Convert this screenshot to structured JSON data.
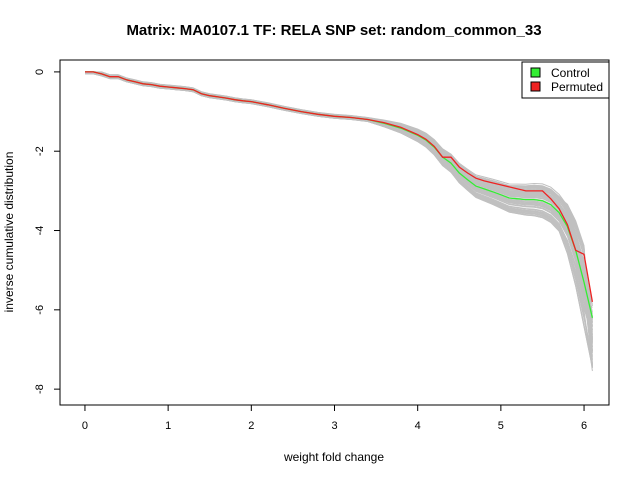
{
  "chart_data": {
    "type": "line",
    "title": "Matrix: MA0107.1 TF: RELA SNP set: random_common_33",
    "xlabel": "weight fold change",
    "ylabel": "inverse cumulative distribution",
    "xlim": [
      -0.3,
      6.3
    ],
    "ylim": [
      -8.4,
      0.3
    ],
    "xticks": [
      0,
      1,
      2,
      3,
      4,
      5,
      6
    ],
    "yticks": [
      0,
      -2,
      -4,
      -6,
      -8
    ],
    "grid": false,
    "legend_position": "top-right",
    "colors": {
      "control": "#33ee33",
      "permuted": "#ee2222",
      "background": "#c0c0c0"
    },
    "series": [
      {
        "name": "Control",
        "color": "#33ee33",
        "x": [
          0,
          0.1,
          0.2,
          0.3,
          0.4,
          0.5,
          0.6,
          0.7,
          0.8,
          0.9,
          1.0,
          1.1,
          1.2,
          1.3,
          1.4,
          1.5,
          1.6,
          1.7,
          1.8,
          1.9,
          2.0,
          2.2,
          2.4,
          2.6,
          2.8,
          3.0,
          3.2,
          3.4,
          3.6,
          3.8,
          4.0,
          4.1,
          4.2,
          4.3,
          4.4,
          4.5,
          4.6,
          4.7,
          4.8,
          4.9,
          5.0,
          5.1,
          5.2,
          5.3,
          5.4,
          5.5,
          5.6,
          5.7,
          5.8,
          5.9,
          6.0,
          6.1
        ],
        "values": [
          0,
          0,
          -0.05,
          -0.12,
          -0.12,
          -0.2,
          -0.25,
          -0.3,
          -0.32,
          -0.36,
          -0.38,
          -0.4,
          -0.42,
          -0.45,
          -0.55,
          -0.6,
          -0.63,
          -0.66,
          -0.7,
          -0.73,
          -0.75,
          -0.83,
          -0.92,
          -1.0,
          -1.07,
          -1.12,
          -1.15,
          -1.2,
          -1.3,
          -1.42,
          -1.6,
          -1.72,
          -1.9,
          -2.15,
          -2.3,
          -2.55,
          -2.72,
          -2.88,
          -2.95,
          -3.02,
          -3.1,
          -3.18,
          -3.2,
          -3.22,
          -3.22,
          -3.25,
          -3.35,
          -3.55,
          -3.9,
          -4.5,
          -5.3,
          -6.2
        ]
      },
      {
        "name": "Permuted",
        "color": "#ee2222",
        "x": [
          0,
          0.1,
          0.2,
          0.3,
          0.4,
          0.5,
          0.6,
          0.7,
          0.8,
          0.9,
          1.0,
          1.1,
          1.2,
          1.3,
          1.4,
          1.5,
          1.6,
          1.7,
          1.8,
          1.9,
          2.0,
          2.2,
          2.4,
          2.6,
          2.8,
          3.0,
          3.2,
          3.4,
          3.6,
          3.8,
          4.0,
          4.1,
          4.2,
          4.3,
          4.4,
          4.5,
          4.6,
          4.7,
          4.8,
          4.9,
          5.0,
          5.1,
          5.2,
          5.3,
          5.4,
          5.5,
          5.6,
          5.7,
          5.8,
          5.9,
          6.0,
          6.1
        ],
        "values": [
          0,
          0,
          -0.05,
          -0.12,
          -0.12,
          -0.2,
          -0.25,
          -0.3,
          -0.32,
          -0.36,
          -0.38,
          -0.4,
          -0.42,
          -0.45,
          -0.55,
          -0.6,
          -0.63,
          -0.66,
          -0.7,
          -0.73,
          -0.75,
          -0.83,
          -0.92,
          -1.0,
          -1.07,
          -1.12,
          -1.15,
          -1.2,
          -1.28,
          -1.4,
          -1.58,
          -1.7,
          -1.88,
          -2.15,
          -2.15,
          -2.4,
          -2.55,
          -2.68,
          -2.75,
          -2.8,
          -2.85,
          -2.9,
          -2.95,
          -3.0,
          -3.0,
          -3.0,
          -3.2,
          -3.45,
          -3.85,
          -4.5,
          -4.6,
          -5.8
        ]
      }
    ]
  }
}
